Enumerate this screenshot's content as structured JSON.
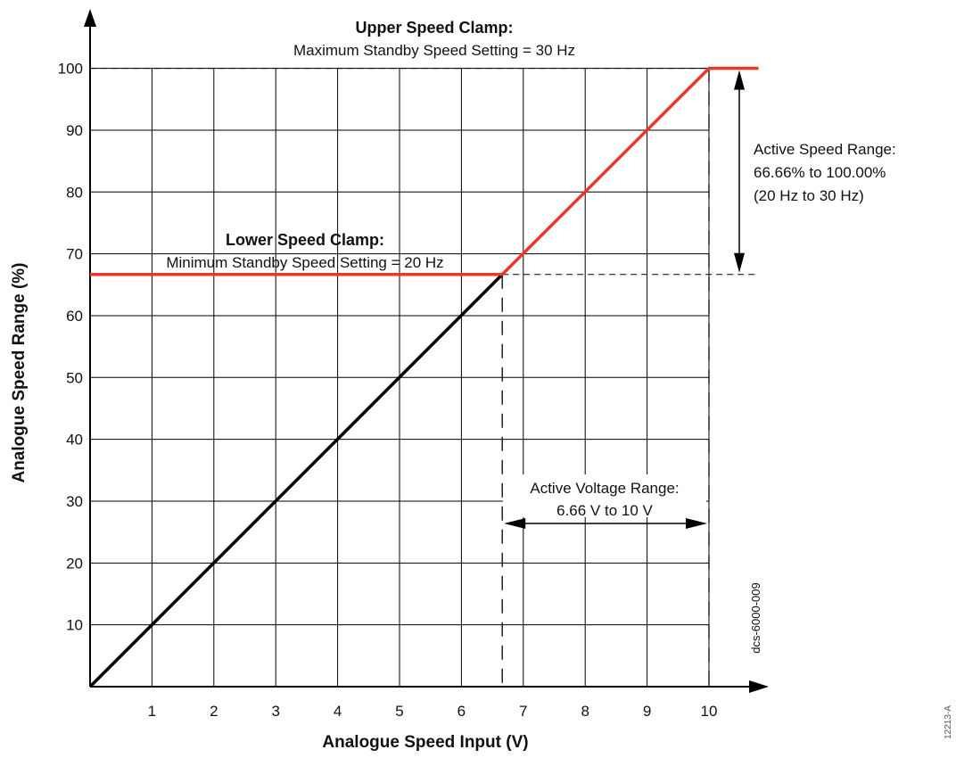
{
  "chart_data": {
    "type": "line",
    "xlabel": "Analogue Speed Input (V)",
    "ylabel": "Analogue Speed Range (%)",
    "xlim": [
      0,
      10.8
    ],
    "ylim": [
      0,
      107
    ],
    "x_ticks": [
      1,
      2,
      3,
      4,
      5,
      6,
      7,
      8,
      9,
      10
    ],
    "y_ticks": [
      10,
      20,
      30,
      40,
      50,
      60,
      70,
      80,
      90,
      100
    ],
    "grid": true,
    "series": [
      {
        "name": "",
        "color": "#000000",
        "points": [
          [
            0,
            0
          ],
          [
            6.66,
            66.66
          ]
        ]
      },
      {
        "name": "",
        "color": "#e8382a",
        "points": [
          [
            0,
            66.66
          ],
          [
            6.66,
            66.66
          ],
          [
            10,
            100
          ],
          [
            10.8,
            100
          ]
        ]
      }
    ],
    "annotations": {
      "upper_clamp_title": "Upper Speed Clamp:",
      "upper_clamp_text": "Maximum Standby Speed Setting = 30 Hz",
      "lower_clamp_title": "Lower Speed Clamp:",
      "lower_clamp_text": "Minimum Standby Speed Setting = 20 Hz",
      "active_speed_line1": "Active Speed Range:",
      "active_speed_line2": "66.66% to 100.00%",
      "active_speed_line3": "(20 Hz to 30 Hz)",
      "active_voltage_line1": "Active Voltage Range:",
      "active_voltage_line2": "6.66 V to 10 V"
    },
    "figure_id": "dcs-6000-009",
    "side_id": "12213-A"
  }
}
